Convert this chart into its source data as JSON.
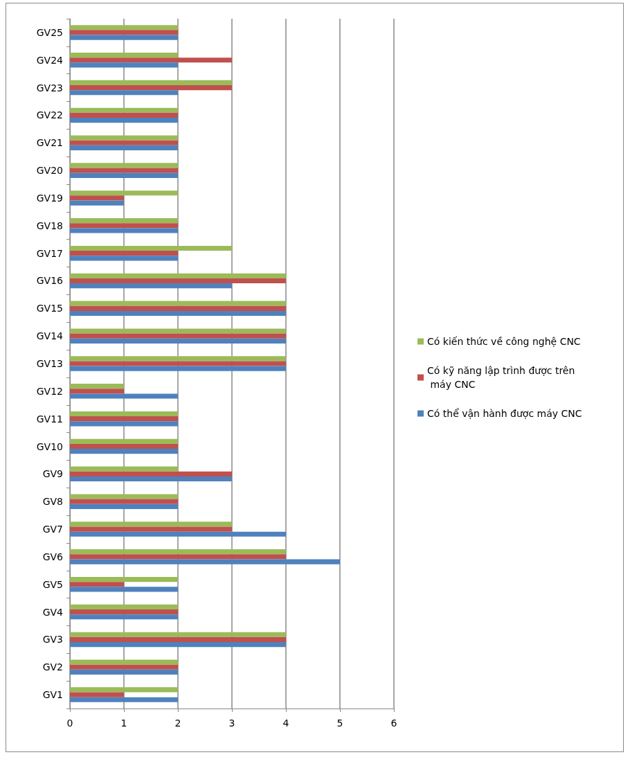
{
  "chart_data": {
    "type": "bar",
    "orientation": "horizontal",
    "categories": [
      "GV25",
      "GV24",
      "GV23",
      "GV22",
      "GV21",
      "GV20",
      "GV19",
      "GV18",
      "GV17",
      "GV16",
      "GV15",
      "GV14",
      "GV13",
      "GV12",
      "GV11",
      "GV10",
      "GV9",
      "GV8",
      "GV7",
      "GV6",
      "GV5",
      "GV4",
      "GV3",
      "GV2",
      "GV1"
    ],
    "series": [
      {
        "name": "Có kiến thức về công nghệ CNC",
        "color": "#9bbb59",
        "values": [
          2,
          2,
          3,
          2,
          2,
          2,
          2,
          2,
          3,
          4,
          4,
          4,
          4,
          1,
          2,
          2,
          2,
          2,
          3,
          4,
          2,
          2,
          4,
          2,
          2
        ]
      },
      {
        "name": "Có kỹ năng lập trình được trên máy CNC",
        "color": "#c0504d",
        "values": [
          2,
          3,
          3,
          2,
          2,
          2,
          1,
          2,
          2,
          4,
          4,
          4,
          4,
          1,
          2,
          2,
          3,
          2,
          3,
          4,
          1,
          2,
          4,
          2,
          1
        ]
      },
      {
        "name": "Có thể vận hành được máy CNC",
        "color": "#4f81bd",
        "values": [
          2,
          2,
          2,
          2,
          2,
          2,
          1,
          2,
          2,
          3,
          4,
          4,
          4,
          2,
          2,
          2,
          3,
          2,
          4,
          5,
          2,
          2,
          4,
          2,
          2
        ]
      }
    ],
    "xlim": [
      0,
      6
    ],
    "xticks": [
      0,
      1,
      2,
      3,
      4,
      5,
      6
    ],
    "grid": "x",
    "legend": "right"
  }
}
